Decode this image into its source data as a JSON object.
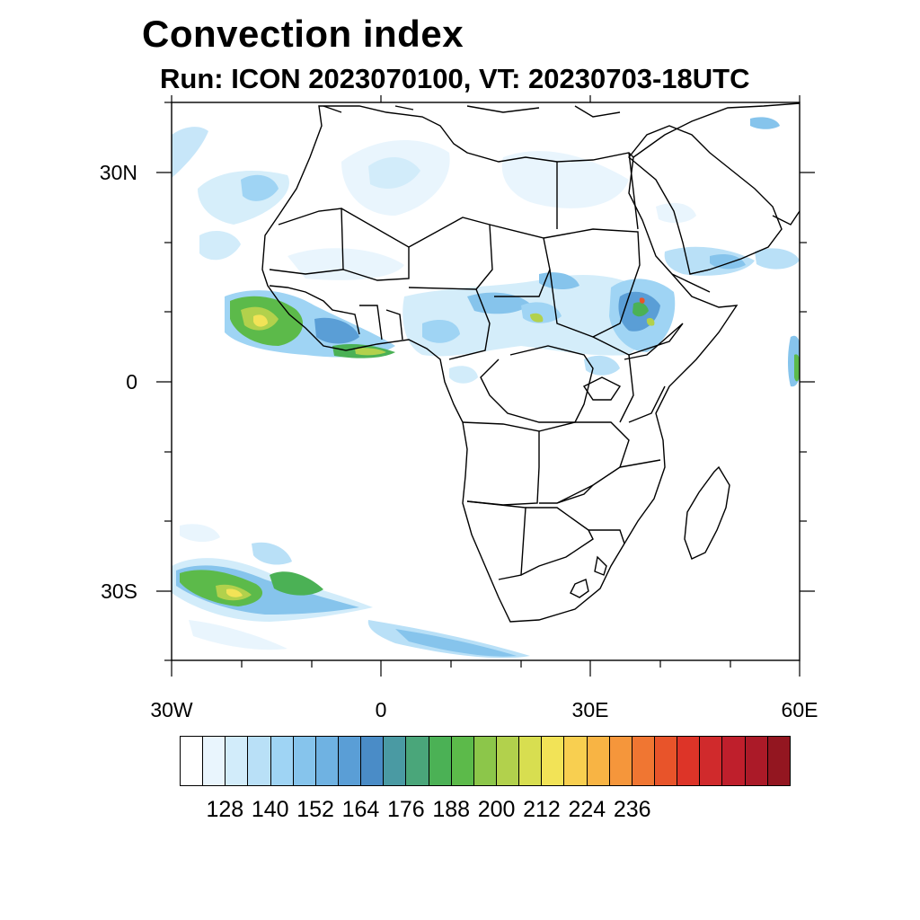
{
  "title": "Convection index",
  "subtitle": "Run: ICON 2023070100,  VT: 20230703-18UTC",
  "axes": {
    "lat_labels": [
      "30N",
      "0",
      "30S"
    ],
    "lon_labels": [
      "30W",
      "0",
      "30E",
      "60E"
    ]
  },
  "colorbar": {
    "labels": [
      "128",
      "140",
      "152",
      "164",
      "176",
      "188",
      "200",
      "212",
      "224",
      "236"
    ],
    "colors": [
      "#ffffff",
      "#e9f5fd",
      "#d2ecfa",
      "#b9e0f7",
      "#9fd4f4",
      "#86c4ec",
      "#6fb2e2",
      "#5a9ed6",
      "#4a8cc7",
      "#4a9aa3",
      "#4aa67a",
      "#4bb155",
      "#5cba4a",
      "#8cc64a",
      "#b2d14c",
      "#d8de50",
      "#f2e357",
      "#f8cf50",
      "#f8b444",
      "#f5963b",
      "#f07632",
      "#e8542a",
      "#dd3428",
      "#d02a2c",
      "#bf1f2c",
      "#ab1a28",
      "#931620"
    ]
  }
}
